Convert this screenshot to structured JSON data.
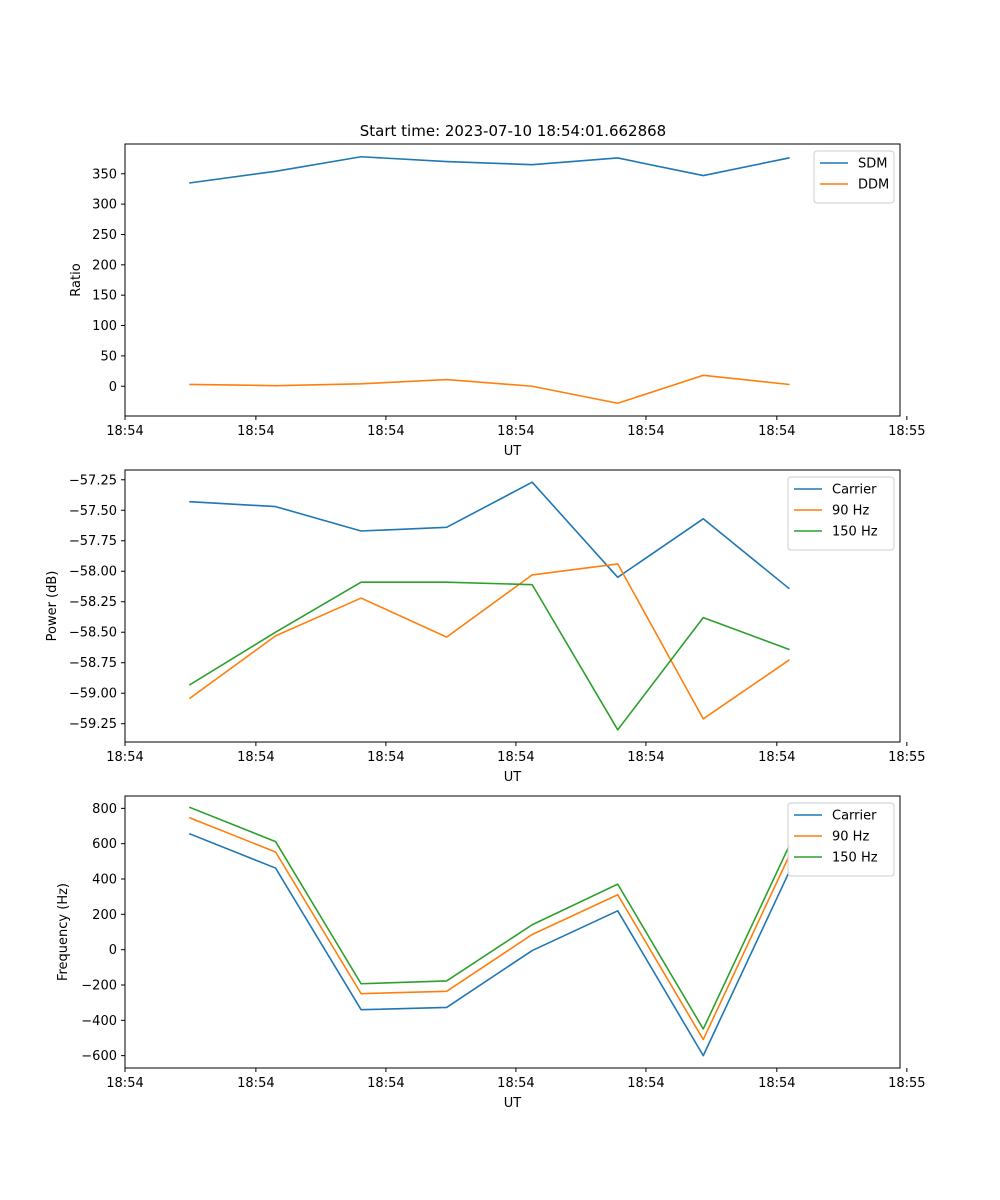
{
  "figure": {
    "title": "Start time: 2023-07-10 18:54:01.662868"
  },
  "colors": {
    "blue": "#1f77b4",
    "orange": "#ff7f0e",
    "green": "#2ca02c"
  },
  "chart_data": [
    {
      "type": "line",
      "title": "Start time: 2023-07-10 18:54:01.662868",
      "xlabel": "UT",
      "ylabel": "Ratio",
      "x": [
        1,
        2,
        3,
        4,
        5,
        6,
        7,
        8
      ],
      "xlim": [
        0.24,
        9.3
      ],
      "xticks": [
        0.24,
        1.77,
        3.29,
        4.81,
        6.33,
        7.86,
        9.38
      ],
      "xtick_labels": [
        "18:54",
        "18:54",
        "18:54",
        "18:54",
        "18:54",
        "18:54",
        "18:55"
      ],
      "ylim": [
        -49,
        399
      ],
      "yticks": [
        0,
        50,
        100,
        150,
        200,
        250,
        300,
        350
      ],
      "ytick_labels": [
        "0",
        "50",
        "100",
        "150",
        "200",
        "250",
        "300",
        "350"
      ],
      "legend_position": "top-right",
      "series": [
        {
          "name": "SDM",
          "color": "#1f77b4",
          "values": [
            335,
            354,
            378,
            370,
            365,
            376,
            347,
            376
          ]
        },
        {
          "name": "DDM",
          "color": "#ff7f0e",
          "values": [
            3,
            1,
            4,
            11,
            0,
            -28,
            18,
            3
          ]
        }
      ]
    },
    {
      "type": "line",
      "title": "",
      "xlabel": "UT",
      "ylabel": "Power (dB)",
      "x": [
        1,
        2,
        3,
        4,
        5,
        6,
        7,
        8
      ],
      "xlim": [
        0.24,
        9.3
      ],
      "xticks": [
        0.24,
        1.77,
        3.29,
        4.81,
        6.33,
        7.86,
        9.38
      ],
      "xtick_labels": [
        "18:54",
        "18:54",
        "18:54",
        "18:54",
        "18:54",
        "18:54",
        "18:55"
      ],
      "ylim": [
        -59.4,
        -57.17
      ],
      "yticks": [
        -59.25,
        -59.0,
        -58.75,
        -58.5,
        -58.25,
        -58.0,
        -57.75,
        -57.5,
        -57.25
      ],
      "ytick_labels": [
        "−59.25",
        "−59.00",
        "−58.75",
        "−58.50",
        "−58.25",
        "−58.00",
        "−57.75",
        "−57.50",
        "−57.25"
      ],
      "legend_position": "top-right",
      "series": [
        {
          "name": "Carrier",
          "color": "#1f77b4",
          "values": [
            -57.43,
            -57.47,
            -57.67,
            -57.64,
            -57.27,
            -58.05,
            -57.57,
            -58.14
          ]
        },
        {
          "name": "90 Hz",
          "color": "#ff7f0e",
          "values": [
            -59.04,
            -58.53,
            -58.22,
            -58.54,
            -58.03,
            -57.94,
            -59.21,
            -58.73
          ]
        },
        {
          "name": "150 Hz",
          "color": "#2ca02c",
          "values": [
            -58.93,
            -58.5,
            -58.09,
            -58.09,
            -58.11,
            -59.3,
            -58.38,
            -58.64
          ]
        }
      ]
    },
    {
      "type": "line",
      "title": "",
      "xlabel": "UT",
      "ylabel": "Frequency (Hz)",
      "x": [
        1,
        2,
        3,
        4,
        5,
        6,
        7,
        8
      ],
      "xlim": [
        0.24,
        9.3
      ],
      "xticks": [
        0.24,
        1.77,
        3.29,
        4.81,
        6.33,
        7.86,
        9.38
      ],
      "xtick_labels": [
        "18:54",
        "18:54",
        "18:54",
        "18:54",
        "18:54",
        "18:54",
        "18:55"
      ],
      "ylim": [
        -670,
        870
      ],
      "yticks": [
        -600,
        -400,
        -200,
        0,
        200,
        400,
        600,
        800
      ],
      "ytick_labels": [
        "−600",
        "−400",
        "−200",
        "0",
        "200",
        "400",
        "600",
        "800"
      ],
      "legend_position": "top-right",
      "series": [
        {
          "name": "Carrier",
          "color": "#1f77b4",
          "values": [
            655,
            462,
            -340,
            -327,
            -5,
            220,
            -600,
            436
          ]
        },
        {
          "name": "90 Hz",
          "color": "#ff7f0e",
          "values": [
            746,
            553,
            -249,
            -236,
            86,
            311,
            -509,
            527
          ]
        },
        {
          "name": "150 Hz",
          "color": "#2ca02c",
          "values": [
            805,
            612,
            -193,
            -177,
            141,
            371,
            -449,
            583
          ]
        }
      ]
    }
  ]
}
